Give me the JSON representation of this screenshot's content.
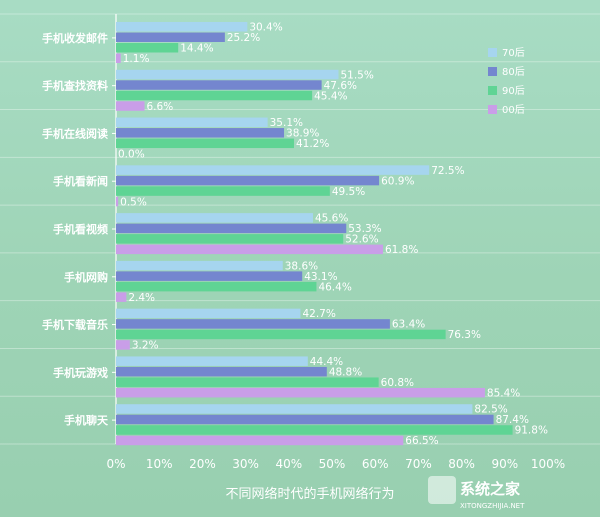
{
  "chart_data": {
    "type": "bar",
    "orientation": "horizontal",
    "title": "",
    "xlabel": "不同网络时代的手机网络行为",
    "ylabel": "",
    "xlim": [
      0,
      100
    ],
    "x_ticks": [
      "0%",
      "10%",
      "20%",
      "30%",
      "40%",
      "50%",
      "60%",
      "70%",
      "80%",
      "90%",
      "100%"
    ],
    "value_suffix": "%",
    "legend_position": "top-right",
    "grid": false,
    "categories": [
      "手机收发邮件",
      "手机查找资料",
      "手机在线阅读",
      "手机看新闻",
      "手机看视频",
      "手机网购",
      "手机下载音乐",
      "手机玩游戏",
      "手机聊天"
    ],
    "series": [
      {
        "name": "70后",
        "color": "#a6d5ef",
        "values": [
          30.4,
          51.5,
          35.1,
          72.5,
          45.6,
          38.6,
          42.7,
          44.4,
          82.5
        ]
      },
      {
        "name": "80后",
        "color": "#7486cf",
        "values": [
          25.2,
          47.6,
          38.9,
          60.9,
          53.3,
          43.1,
          63.4,
          48.8,
          87.4
        ]
      },
      {
        "name": "90后",
        "color": "#5fd494",
        "values": [
          14.4,
          45.4,
          41.2,
          49.5,
          52.6,
          46.4,
          76.3,
          60.8,
          91.8
        ]
      },
      {
        "name": "00后",
        "color": "#c99ee8",
        "values": [
          1.1,
          6.6,
          0.0,
          0.5,
          61.8,
          2.4,
          3.2,
          85.4,
          66.5
        ]
      }
    ]
  },
  "watermark": {
    "text": "系统之家",
    "subtext": "XITONGZHIJIA.NET"
  }
}
